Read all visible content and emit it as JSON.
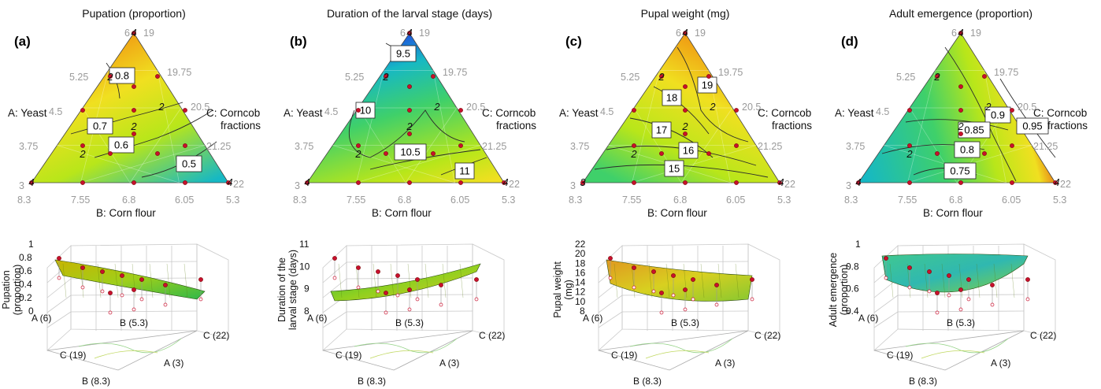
{
  "colors": {
    "low": "#16b8c4",
    "mid_low": "#3fd06a",
    "mid": "#b8e61a",
    "mid_high": "#f0e020",
    "high": "#f08a10",
    "peak": "#e03010",
    "lowest": "#2050e0",
    "design_point": "#c8102e"
  },
  "axes": {
    "a_label": "A: Yeast",
    "b_label": "B: Corn flour",
    "c_label_line1": "C: Corncob",
    "c_label_line2": "fractions",
    "a_ticks": [
      "6.19",
      "5.25",
      "4.5",
      "3.75",
      "3"
    ],
    "a_ticks_top_short": "6",
    "a_ticks_top_tail": "19",
    "b_ticks": [
      "8.3",
      "7.55",
      "6.8",
      "6.05",
      "5.3"
    ],
    "c_ticks": [
      "19.75",
      "20.5",
      "21.25",
      "22"
    ],
    "c_ticks_left": "19",
    "c_ticks_bottom_tail": "22",
    "bottom_left_a": "3"
  },
  "chart_data": [
    {
      "type": "heatmap",
      "panel": "(a)",
      "title": "Pupation (proportion)",
      "contour_levels": [
        "0.8",
        "0.7",
        "0.6",
        "0.5"
      ],
      "z_range": [
        0,
        1
      ],
      "z_ticks": [
        "0",
        "0.2",
        "0.4",
        "0.6",
        "0.8",
        "1"
      ],
      "zlabel": "Pupation (proportion)",
      "zlabel_line1": "Pupation",
      "zlabel_line2": "(proportion)",
      "corner_labels": {
        "a": "A (6)",
        "b_near": "B (5.3)",
        "c_right": "C (22)",
        "c_left": "C (19)",
        "a_low": "A (3)",
        "b_low": "B (8.3)"
      },
      "replicates": [
        "4",
        "2",
        "2",
        "2",
        "2",
        "4",
        "4"
      ]
    },
    {
      "type": "heatmap",
      "panel": "(b)",
      "title": "Duration of the larval stage (days)",
      "contour_levels": [
        "9.5",
        "10",
        "10.5",
        "11"
      ],
      "z_range": [
        8,
        11
      ],
      "z_ticks": [
        "8",
        "9",
        "10",
        "11"
      ],
      "zlabel": "Duration of the larval stage (days)",
      "zlabel_line1": "Duration of the",
      "zlabel_line2": "larval stage (days)",
      "corner_labels": {
        "a": "A (6)",
        "b_near": "B (5.3)",
        "c_right": "C (22)",
        "c_left": "C (19)",
        "a_low": "A (3)",
        "b_low": "B (8.3)"
      },
      "replicates": [
        "4",
        "2",
        "2",
        "2",
        "2",
        "4",
        "4"
      ]
    },
    {
      "type": "heatmap",
      "panel": "(c)",
      "title": "Pupal weight (mg)",
      "contour_levels": [
        "19",
        "18",
        "17",
        "16",
        "15"
      ],
      "z_range": [
        8,
        22
      ],
      "z_ticks": [
        "8",
        "10",
        "12",
        "14",
        "16",
        "18",
        "20",
        "22"
      ],
      "zlabel": "Pupal weight (mg)",
      "zlabel_line1": "Pupal weight",
      "zlabel_line2": "(mg)",
      "corner_labels": {
        "a": "A (6)",
        "b_near": "B (5.3)",
        "c_right": "C (22)",
        "c_left": "C (19)",
        "a_low": "A (3)",
        "b_low": "B (8.3)"
      },
      "replicates": [
        "4",
        "2",
        "2",
        "2",
        "2",
        "3",
        "4"
      ]
    },
    {
      "type": "heatmap",
      "panel": "(d)",
      "title": "Adult emergence (proportion)",
      "contour_levels": [
        "0.9",
        "0.85",
        "0.95",
        "0.8",
        "0.75"
      ],
      "z_range": [
        0.4,
        1
      ],
      "z_ticks": [
        "0.4",
        "0.6",
        "0.8",
        "1"
      ],
      "zlabel": "Adult emergence (proportion)",
      "zlabel_line1": "Adult emergence",
      "zlabel_line2": "(proportion)",
      "corner_labels": {
        "a": "A (6)",
        "b_near": "B (5.3)",
        "c_right": "C (22)",
        "c_left": "C (19)",
        "a_low": "A (3)",
        "b_low": "B (8.3)"
      },
      "replicates": [
        "4",
        "2",
        "2",
        "2",
        "2",
        "4",
        "4"
      ]
    }
  ]
}
